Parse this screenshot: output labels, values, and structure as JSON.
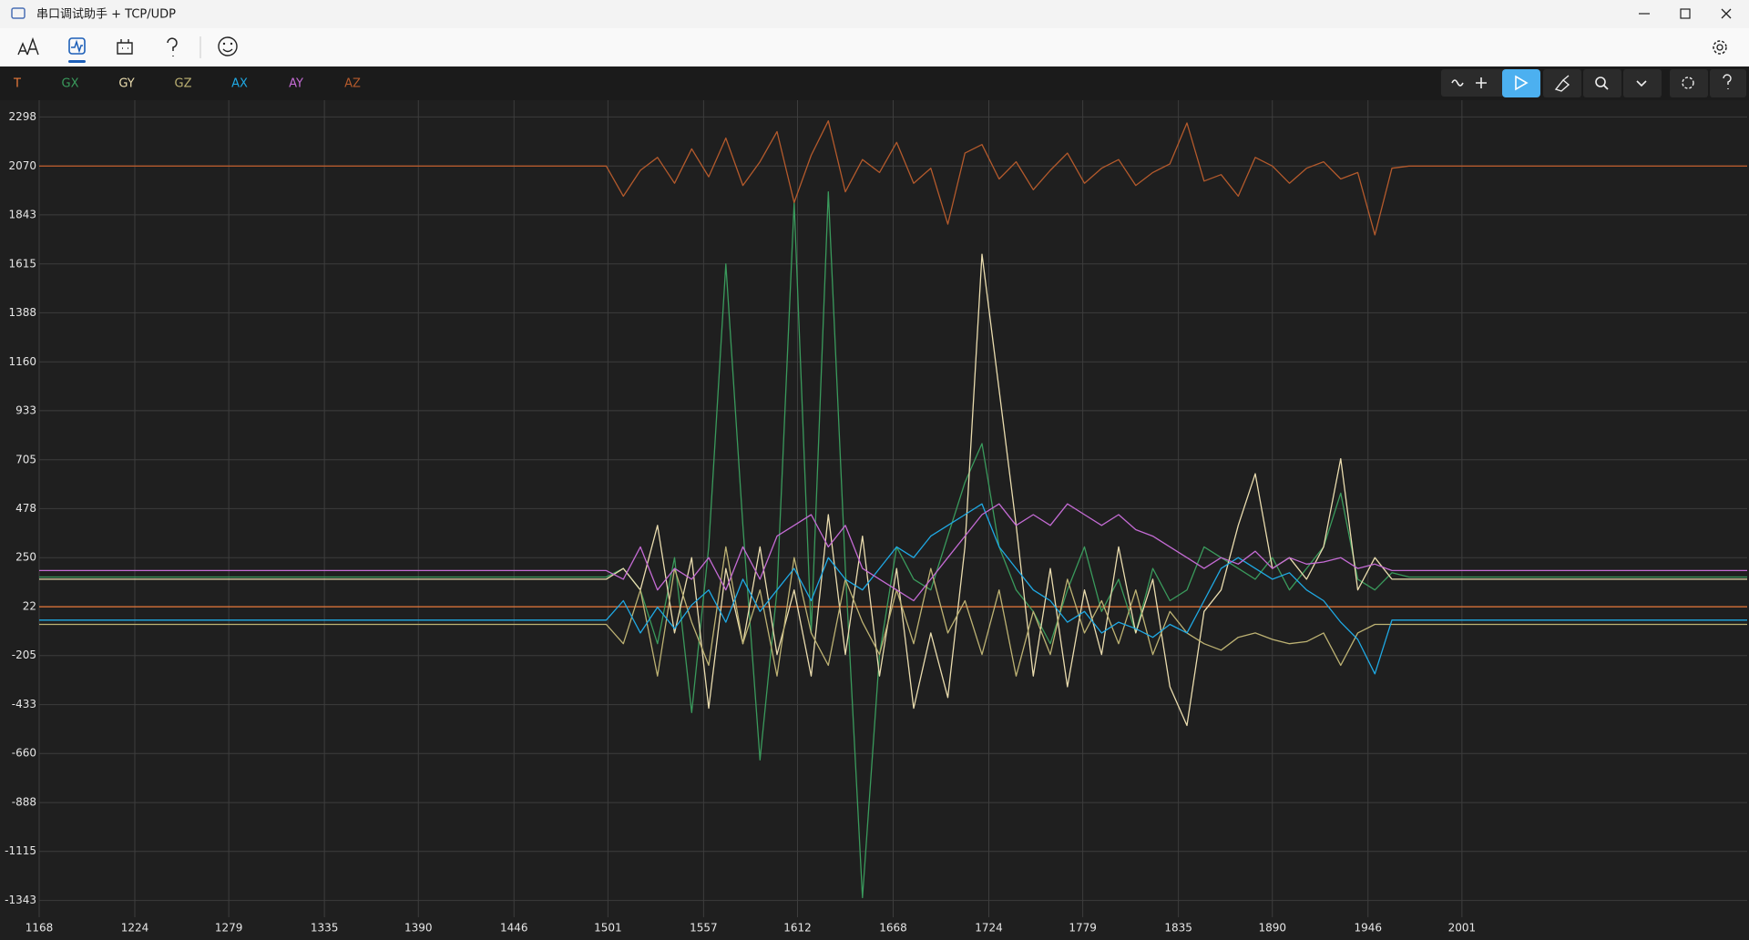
{
  "window": {
    "title": "串口调试助手 + TCP/UDP"
  },
  "chart_data": {
    "type": "line",
    "x": [
      1168,
      1250,
      1350,
      1450,
      1500,
      1510,
      1520,
      1530,
      1540,
      1550,
      1560,
      1570,
      1580,
      1590,
      1600,
      1610,
      1620,
      1630,
      1640,
      1650,
      1660,
      1670,
      1680,
      1690,
      1700,
      1710,
      1720,
      1730,
      1740,
      1750,
      1760,
      1770,
      1780,
      1790,
      1800,
      1810,
      1820,
      1830,
      1840,
      1850,
      1860,
      1870,
      1880,
      1890,
      1900,
      1910,
      1920,
      1930,
      1940,
      1950,
      1960,
      1970,
      1980,
      2050,
      2120,
      2168
    ],
    "xlim": [
      1168,
      2168
    ],
    "ylim": [
      -1421,
      2376
    ],
    "xticks": [
      1168,
      1224,
      1279,
      1335,
      1390,
      1446,
      1501,
      1557,
      1612,
      1668,
      1724,
      1779,
      1835,
      1890,
      1946,
      2001
    ],
    "yticks": [
      2298,
      2070,
      1843,
      1615,
      1388,
      1160,
      933,
      705,
      478,
      250,
      22,
      -205,
      -433,
      -660,
      -888,
      -1115,
      -1343
    ],
    "grid": true,
    "series": [
      {
        "name": "T",
        "color": "#e8793a",
        "values": [
          22,
          22,
          22,
          22,
          22,
          22,
          22,
          22,
          22,
          22,
          22,
          22,
          22,
          22,
          22,
          22,
          22,
          22,
          22,
          22,
          22,
          22,
          22,
          22,
          22,
          22,
          22,
          22,
          22,
          22,
          22,
          22,
          22,
          22,
          22,
          22,
          22,
          22,
          22,
          22,
          22,
          22,
          22,
          22,
          22,
          22,
          22,
          22,
          22,
          22,
          22,
          22,
          22,
          22,
          22,
          22
        ]
      },
      {
        "name": "GX",
        "color": "#3a9a5c",
        "values": [
          160,
          160,
          160,
          160,
          160,
          200,
          100,
          -150,
          250,
          -470,
          300,
          1615,
          400,
          -690,
          100,
          1900,
          -100,
          1950,
          200,
          -1330,
          -200,
          300,
          150,
          100,
          350,
          600,
          780,
          300,
          100,
          0,
          -150,
          100,
          300,
          0,
          150,
          -100,
          200,
          50,
          100,
          300,
          250,
          200,
          150,
          250,
          100,
          200,
          300,
          550,
          150,
          100,
          180,
          160,
          160,
          160,
          160,
          160
        ]
      },
      {
        "name": "GY",
        "color": "#eadcae",
        "values": [
          150,
          150,
          150,
          150,
          150,
          200,
          100,
          400,
          -100,
          250,
          -450,
          200,
          -150,
          300,
          -200,
          100,
          -300,
          450,
          -200,
          350,
          -300,
          200,
          -450,
          -100,
          -400,
          300,
          1660,
          1030,
          400,
          -300,
          200,
          -350,
          100,
          -200,
          300,
          -100,
          150,
          -350,
          -530,
          0,
          100,
          400,
          640,
          200,
          250,
          150,
          300,
          710,
          100,
          250,
          150,
          150,
          150,
          150,
          150,
          150
        ]
      },
      {
        "name": "GZ",
        "color": "#bdb273",
        "values": [
          -60,
          -60,
          -60,
          -60,
          -60,
          -150,
          100,
          -300,
          200,
          -50,
          -250,
          300,
          -150,
          100,
          -300,
          250,
          -100,
          -250,
          150,
          -50,
          -200,
          100,
          -150,
          200,
          -100,
          50,
          -200,
          100,
          -300,
          0,
          -200,
          150,
          -100,
          50,
          -150,
          100,
          -200,
          0,
          -100,
          -150,
          -180,
          -120,
          -100,
          -130,
          -150,
          -140,
          -100,
          -250,
          -100,
          -60,
          -60,
          -60,
          -60,
          -60,
          -60,
          -60
        ]
      },
      {
        "name": "AX",
        "color": "#1fa9e4",
        "values": [
          -40,
          -40,
          -40,
          -40,
          -40,
          50,
          -100,
          20,
          -80,
          30,
          100,
          -50,
          150,
          0,
          100,
          200,
          50,
          250,
          150,
          100,
          200,
          300,
          250,
          350,
          400,
          450,
          500,
          300,
          200,
          100,
          50,
          -50,
          0,
          -100,
          -50,
          -80,
          -120,
          -60,
          -100,
          50,
          200,
          250,
          200,
          150,
          180,
          100,
          50,
          -50,
          -130,
          -290,
          -40,
          -40,
          -40,
          -40,
          -40,
          -40
        ]
      },
      {
        "name": "AY",
        "color": "#c46bd4",
        "values": [
          190,
          190,
          190,
          190,
          190,
          150,
          300,
          100,
          200,
          150,
          250,
          100,
          300,
          150,
          350,
          400,
          450,
          300,
          400,
          200,
          150,
          100,
          50,
          150,
          250,
          350,
          450,
          500,
          400,
          450,
          400,
          500,
          450,
          400,
          450,
          380,
          350,
          300,
          250,
          200,
          250,
          220,
          280,
          200,
          250,
          220,
          230,
          250,
          200,
          220,
          190,
          190,
          190,
          190,
          190,
          190
        ]
      },
      {
        "name": "AZ",
        "color": "#b45a2c",
        "values": [
          2070,
          2070,
          2070,
          2070,
          2070,
          1930,
          2050,
          2110,
          1990,
          2150,
          2020,
          2200,
          1980,
          2090,
          2230,
          1900,
          2120,
          2280,
          1950,
          2100,
          2040,
          2180,
          1990,
          2060,
          1800,
          2130,
          2170,
          2010,
          2090,
          1960,
          2050,
          2130,
          1990,
          2060,
          2100,
          1980,
          2040,
          2080,
          2270,
          2000,
          2030,
          1930,
          2110,
          2070,
          1990,
          2060,
          2090,
          2010,
          2040,
          1750,
          2060,
          2070,
          2070,
          2070,
          2070,
          2070
        ]
      }
    ]
  }
}
